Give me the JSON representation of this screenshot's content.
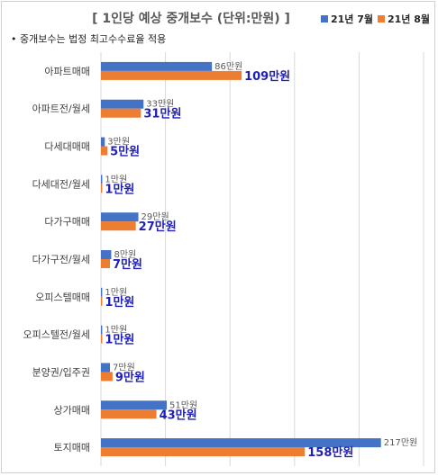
{
  "chart_data": {
    "type": "bar",
    "orientation": "horizontal",
    "title": "[ 1인당 예상 중개보수 (단위:만원) ]",
    "note": "• 중개보수는 법정 최고수수료율 적용",
    "unit": "만원",
    "categories": [
      "아파트매매",
      "아파트전/월세",
      "다세대매매",
      "다세대전/월세",
      "다가구매매",
      "다가구전/월세",
      "오피스텔매매",
      "오피스텔전/월세",
      "분양권/입주권",
      "상가매매",
      "토지매매"
    ],
    "series": [
      {
        "name": "21년 7월",
        "color": "#4472c4",
        "values": [
          86,
          33,
          3,
          1,
          29,
          8,
          1,
          1,
          7,
          51,
          217
        ]
      },
      {
        "name": "21년 8월",
        "color": "#ed7d31",
        "values": [
          109,
          31,
          5,
          1,
          27,
          7,
          1,
          1,
          9,
          43,
          158
        ]
      }
    ],
    "xlim": [
      0,
      250
    ],
    "grid": true,
    "legend_position": "top-right"
  }
}
